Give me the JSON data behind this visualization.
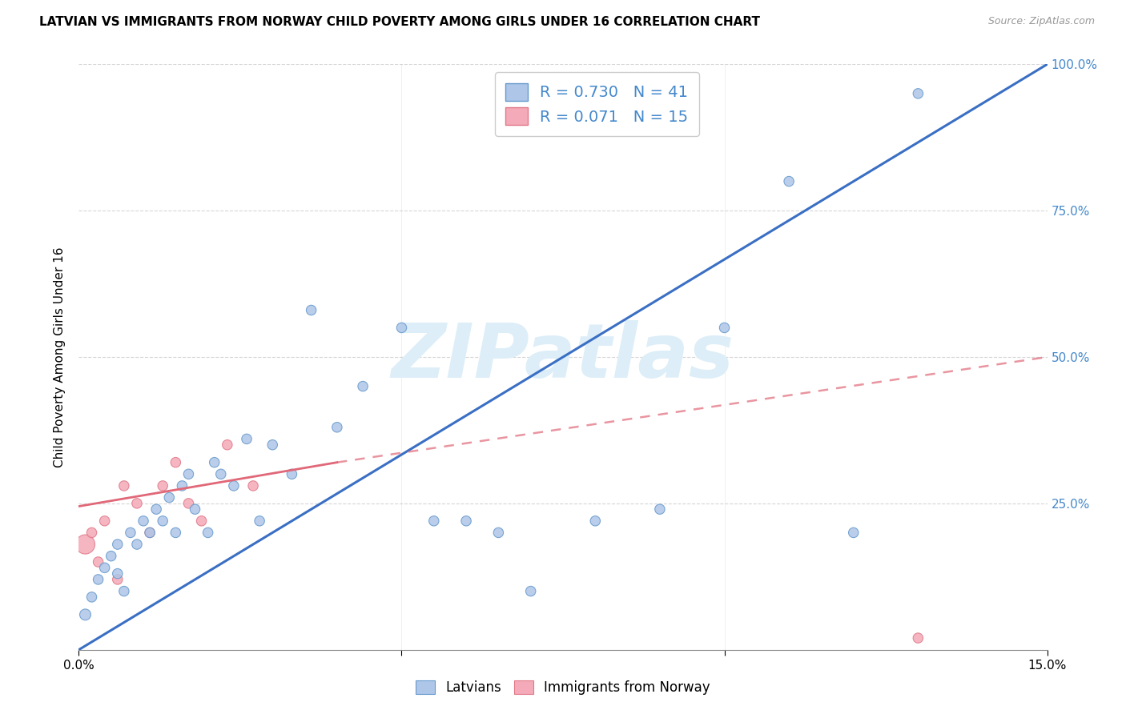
{
  "title": "LATVIAN VS IMMIGRANTS FROM NORWAY CHILD POVERTY AMONG GIRLS UNDER 16 CORRELATION CHART",
  "source": "Source: ZipAtlas.com",
  "ylabel": "Child Poverty Among Girls Under 16",
  "xlim": [
    0.0,
    0.15
  ],
  "ylim": [
    0.0,
    1.0
  ],
  "xtick_positions": [
    0.0,
    0.05,
    0.1,
    0.15
  ],
  "xtick_labels": [
    "0.0%",
    "",
    "",
    "15.0%"
  ],
  "ytick_positions": [
    0.0,
    0.25,
    0.5,
    0.75,
    1.0
  ],
  "ytick_labels_right": [
    "",
    "25.0%",
    "50.0%",
    "75.0%",
    "100.0%"
  ],
  "latvian_fill": "#aec6e8",
  "latvian_edge": "#6699cc",
  "norway_fill": "#f4aab8",
  "norway_edge": "#e07888",
  "line_blue": "#3a6fc4",
  "line_pink": "#e06878",
  "R_latvian": 0.73,
  "N_latvian": 41,
  "R_norway": 0.071,
  "N_norway": 15,
  "watermark_color": "#ddeef8",
  "watermark_text": "ZIPatlas",
  "grid_color": "#cccccc",
  "background": "#ffffff",
  "lat_x": [
    0.001,
    0.002,
    0.003,
    0.004,
    0.005,
    0.006,
    0.006,
    0.007,
    0.008,
    0.009,
    0.01,
    0.011,
    0.012,
    0.013,
    0.014,
    0.015,
    0.016,
    0.017,
    0.018,
    0.02,
    0.021,
    0.022,
    0.024,
    0.026,
    0.028,
    0.03,
    0.033,
    0.036,
    0.04,
    0.044,
    0.05,
    0.055,
    0.06,
    0.065,
    0.07,
    0.08,
    0.09,
    0.1,
    0.11,
    0.12,
    0.13
  ],
  "lat_y": [
    0.06,
    0.09,
    0.12,
    0.14,
    0.16,
    0.18,
    0.13,
    0.1,
    0.2,
    0.18,
    0.22,
    0.2,
    0.24,
    0.22,
    0.26,
    0.2,
    0.28,
    0.3,
    0.24,
    0.2,
    0.32,
    0.3,
    0.28,
    0.36,
    0.22,
    0.35,
    0.3,
    0.58,
    0.38,
    0.45,
    0.55,
    0.22,
    0.22,
    0.2,
    0.1,
    0.22,
    0.24,
    0.55,
    0.8,
    0.2,
    0.95
  ],
  "lat_sizes": [
    100,
    80,
    80,
    80,
    80,
    80,
    80,
    80,
    80,
    80,
    80,
    80,
    80,
    80,
    80,
    80,
    80,
    80,
    80,
    80,
    80,
    80,
    80,
    80,
    80,
    80,
    80,
    80,
    80,
    80,
    80,
    80,
    80,
    80,
    80,
    80,
    80,
    80,
    80,
    80,
    80
  ],
  "nor_x": [
    0.001,
    0.002,
    0.003,
    0.004,
    0.006,
    0.007,
    0.009,
    0.011,
    0.013,
    0.015,
    0.017,
    0.019,
    0.023,
    0.027,
    0.13
  ],
  "nor_y": [
    0.18,
    0.2,
    0.15,
    0.22,
    0.12,
    0.28,
    0.25,
    0.2,
    0.28,
    0.32,
    0.25,
    0.22,
    0.35,
    0.28,
    0.02
  ],
  "nor_sizes": [
    300,
    80,
    80,
    80,
    80,
    80,
    80,
    80,
    80,
    80,
    80,
    80,
    80,
    80,
    80
  ],
  "blue_line": [
    [
      0.0,
      0.0
    ],
    [
      0.15,
      1.0
    ]
  ],
  "pink_solid_line": [
    [
      0.0,
      0.245
    ],
    [
      0.04,
      0.32
    ]
  ],
  "pink_dashed_line": [
    [
      0.04,
      0.32
    ],
    [
      0.15,
      0.5
    ]
  ]
}
